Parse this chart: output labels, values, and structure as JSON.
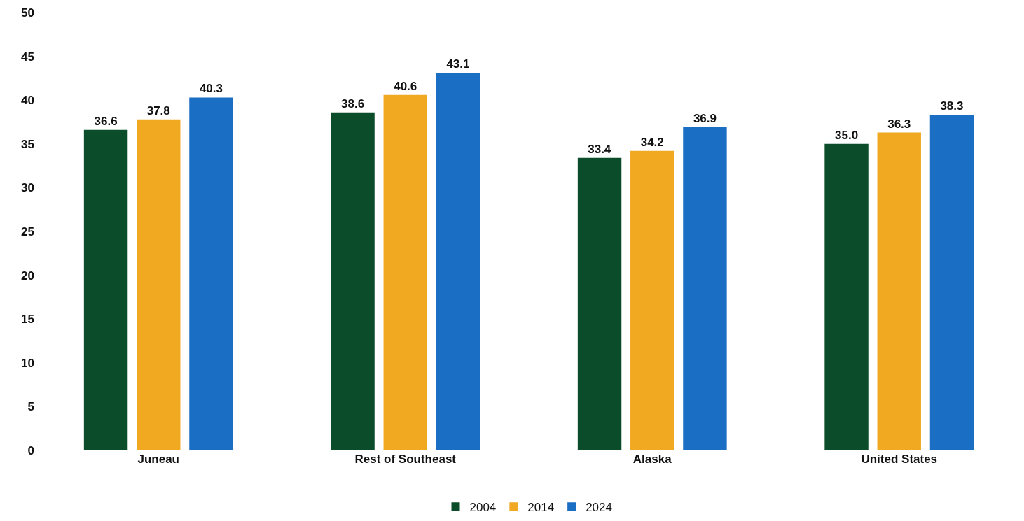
{
  "chart_data": {
    "type": "bar",
    "categories": [
      "Juneau",
      "Rest of Southeast",
      "Alaska",
      "United States"
    ],
    "series": [
      {
        "name": "2004",
        "color": "#0b4d2a",
        "values": [
          36.6,
          38.6,
          33.4,
          35.0
        ],
        "value_labels": [
          "36.6",
          "38.6",
          "33.4",
          "35.0"
        ]
      },
      {
        "name": "2014",
        "color": "#f2a922",
        "values": [
          37.8,
          40.6,
          34.2,
          36.3
        ],
        "value_labels": [
          "37.8",
          "40.6",
          "34.2",
          "36.3"
        ]
      },
      {
        "name": "2024",
        "color": "#1a6ec4",
        "values": [
          40.3,
          43.1,
          36.9,
          38.3
        ],
        "value_labels": [
          "40.3",
          "43.1",
          "36.9",
          "38.3"
        ]
      }
    ],
    "ylim": [
      0,
      50
    ],
    "yticks": [
      0,
      5,
      10,
      15,
      20,
      25,
      30,
      35,
      40,
      45,
      50
    ],
    "grid": false,
    "legend": "bottom"
  }
}
